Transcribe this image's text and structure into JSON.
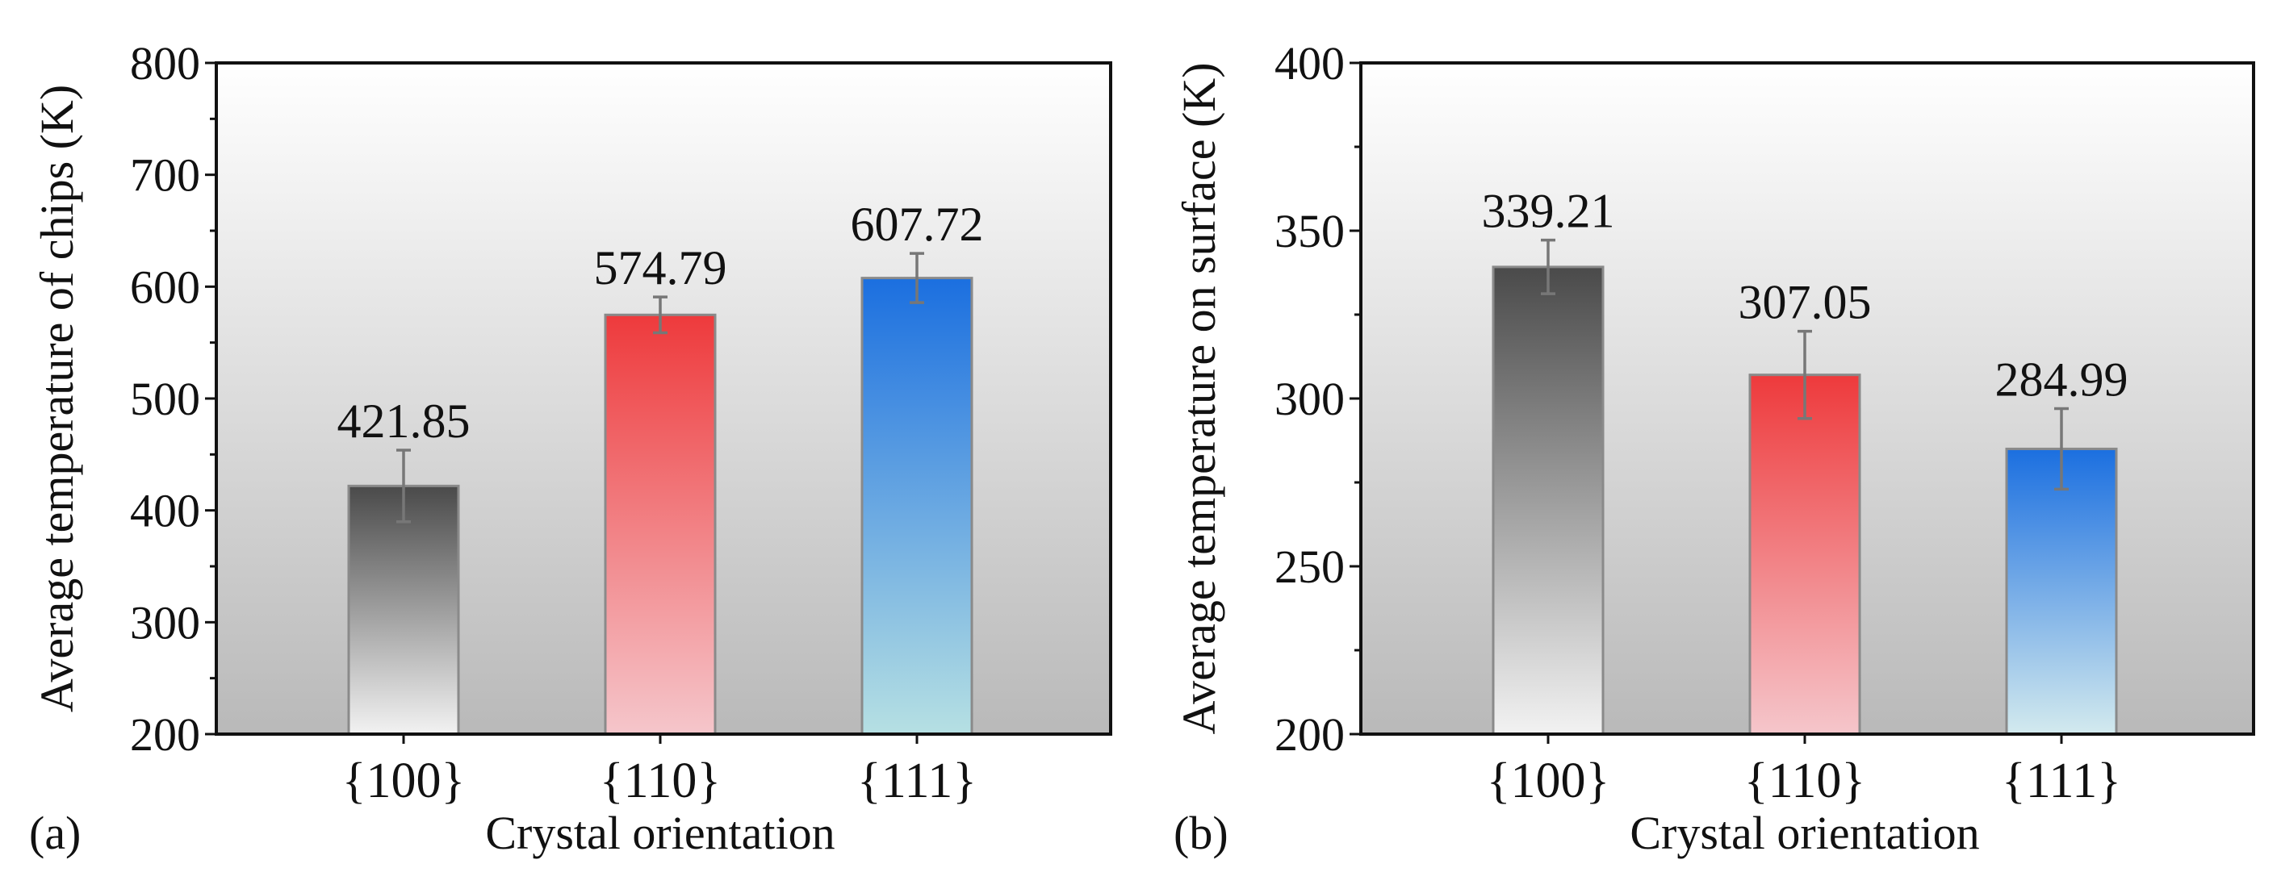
{
  "chart_data": [
    {
      "type": "bar",
      "panel_label": "(a)",
      "title": "",
      "xlabel": "Crystal orientation",
      "ylabel": "Average temperature of chips (K)",
      "categories": [
        "{100}",
        "{110}",
        "{111}"
      ],
      "values": [
        421.85,
        574.79,
        607.72
      ],
      "value_labels": [
        "421.85",
        "574.79",
        "607.72"
      ],
      "errors": [
        32,
        16,
        22
      ],
      "ylim": [
        200,
        800
      ],
      "yticks": [
        200,
        300,
        400,
        500,
        600,
        700,
        800
      ],
      "y_minor_step": 50,
      "grid": false,
      "colors": {
        "bar_top": [
          "#4a4a4a",
          "#ee3a3c",
          "#1b6fe0"
        ],
        "bar_bottom": [
          "#f2f2f2",
          "#f5c6cb",
          "#b6e0e3"
        ]
      }
    },
    {
      "type": "bar",
      "panel_label": "(b)",
      "title": "",
      "xlabel": "Crystal orientation",
      "ylabel": "Average temperature on surface (K)",
      "categories": [
        "{100}",
        "{110}",
        "{111}"
      ],
      "values": [
        339.21,
        307.05,
        284.99
      ],
      "value_labels": [
        "339.21",
        "307.05",
        "284.99"
      ],
      "errors": [
        8,
        13,
        12
      ],
      "ylim": [
        200,
        400
      ],
      "yticks": [
        200,
        250,
        300,
        350,
        400
      ],
      "y_minor_step": 25,
      "grid": false,
      "colors": {
        "bar_top": [
          "#4a4a4a",
          "#ee3a3c",
          "#1b6fe0"
        ],
        "bar_bottom": [
          "#f2f2f2",
          "#f5c6cb",
          "#d3eaee"
        ]
      }
    }
  ],
  "colors": {
    "plot_bg_top": "#ffffff",
    "plot_bg_bottom": "#b9b9b9",
    "axis": "#111111",
    "bar_border": "#8a8a8a",
    "error_bar": "#777777"
  }
}
